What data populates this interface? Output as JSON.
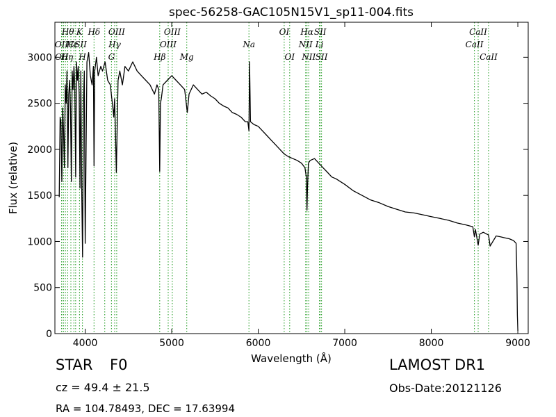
{
  "chart_data": {
    "type": "line",
    "title": "spec-56258-GAC105N15V1_sp11-004.fits",
    "xlabel": "Wavelength (Å)",
    "ylabel": "Flux (relative)",
    "xlim": [
      3650,
      9120
    ],
    "ylim": [
      0,
      3380
    ],
    "x_ticks": [
      4000,
      5000,
      6000,
      7000,
      8000,
      9000
    ],
    "y_ticks": [
      0,
      500,
      1000,
      1500,
      2000,
      2500,
      3000
    ],
    "grid": false,
    "line_color": "#000000",
    "marker_color": "#2ca02c",
    "series": [
      {
        "x": [
          3700,
          3710,
          3720,
          3730,
          3740,
          3750,
          3760,
          3770,
          3780,
          3790,
          3800,
          3810,
          3820,
          3830,
          3840,
          3850,
          3860,
          3870,
          3880,
          3890,
          3900,
          3910,
          3920,
          3930,
          3940,
          3950,
          3960,
          3970,
          3980,
          3990,
          4000,
          4020,
          4040,
          4060,
          4080,
          4095,
          4102,
          4110,
          4130,
          4150,
          4180,
          4200,
          4230,
          4260,
          4290,
          4320,
          4330,
          4340,
          4350,
          4360,
          4380,
          4400,
          4430,
          4460,
          4500,
          4550,
          4600,
          4650,
          4700,
          4750,
          4800,
          4830,
          4850,
          4861,
          4870,
          4880,
          4900,
          4950,
          5000,
          5050,
          5100,
          5150,
          5180,
          5200,
          5250,
          5300,
          5350,
          5400,
          5450,
          5500,
          5550,
          5600,
          5650,
          5700,
          5750,
          5800,
          5850,
          5880,
          5893,
          5900,
          5910,
          5950,
          6000,
          6050,
          6100,
          6150,
          6200,
          6250,
          6300,
          6350,
          6400,
          6450,
          6500,
          6540,
          6555,
          6563,
          6570,
          6580,
          6600,
          6650,
          6700,
          6750,
          6800,
          6850,
          6900,
          6950,
          7000,
          7100,
          7200,
          7300,
          7400,
          7500,
          7600,
          7700,
          7800,
          7900,
          8000,
          8100,
          8200,
          8300,
          8400,
          8480,
          8498,
          8510,
          8542,
          8560,
          8600,
          8662,
          8680,
          8750,
          8800,
          8850,
          8900,
          8950,
          8980,
          8990,
          8995,
          9000
        ],
        "y": [
          1480,
          2350,
          2300,
          1650,
          2450,
          2200,
          1800,
          2700,
          2500,
          2850,
          1800,
          2600,
          2750,
          2450,
          1650,
          2850,
          2650,
          2900,
          2700,
          1700,
          2950,
          2750,
          2900,
          2600,
          1580,
          2850,
          1550,
          830,
          2500,
          2850,
          980,
          2950,
          3050,
          2800,
          2700,
          2900,
          1820,
          2850,
          3000,
          2800,
          2900,
          2850,
          2950,
          2750,
          2700,
          2450,
          2350,
          2550,
          2200,
          1750,
          2750,
          2850,
          2700,
          2900,
          2850,
          2950,
          2850,
          2800,
          2750,
          2700,
          2600,
          2700,
          2650,
          1760,
          2500,
          2550,
          2700,
          2750,
          2800,
          2750,
          2700,
          2650,
          2400,
          2600,
          2700,
          2650,
          2600,
          2620,
          2580,
          2550,
          2500,
          2470,
          2450,
          2400,
          2380,
          2350,
          2300,
          2300,
          2200,
          2950,
          2300,
          2270,
          2250,
          2200,
          2150,
          2100,
          2050,
          2000,
          1950,
          1920,
          1900,
          1880,
          1850,
          1800,
          1700,
          1340,
          1600,
          1850,
          1880,
          1900,
          1850,
          1800,
          1750,
          1700,
          1680,
          1650,
          1620,
          1550,
          1500,
          1450,
          1420,
          1380,
          1350,
          1320,
          1310,
          1290,
          1270,
          1250,
          1230,
          1200,
          1180,
          1160,
          1050,
          1130,
          960,
          1080,
          1100,
          1070,
          950,
          1060,
          1050,
          1040,
          1030,
          1010,
          980,
          600,
          200,
          30
        ]
      }
    ],
    "lines": {
      "x": [
        3727,
        3729,
        3750,
        3771,
        3798,
        3835,
        3869,
        3889,
        3934,
        3968,
        4102,
        4226,
        4304,
        4341,
        4364,
        4861,
        4959,
        5007,
        5174,
        5893,
        6300,
        6363,
        6548,
        6563,
        6583,
        6707,
        6716,
        6731,
        8498,
        8542,
        8662
      ],
      "labels": [
        {
          "text": "Hθ",
          "x": 3800,
          "row": 1
        },
        {
          "text": "K",
          "x": 3934,
          "row": 1
        },
        {
          "text": "Hδ",
          "x": 4102,
          "row": 1
        },
        {
          "text": "OIII",
          "x": 4364,
          "row": 1
        },
        {
          "text": "OIII",
          "x": 5007,
          "row": 1
        },
        {
          "text": "OI",
          "x": 6300,
          "row": 1
        },
        {
          "text": "Hα",
          "x": 6563,
          "row": 1
        },
        {
          "text": "SII",
          "x": 6716,
          "row": 1
        },
        {
          "text": "CaII",
          "x": 8542,
          "row": 1
        },
        {
          "text": "OII",
          "x": 3727,
          "row": 2
        },
        {
          "text": "Hε",
          "x": 3850,
          "row": 2
        },
        {
          "text": "CSII",
          "x": 3910,
          "row": 2
        },
        {
          "text": "Hγ",
          "x": 4341,
          "row": 2
        },
        {
          "text": "OIII",
          "x": 4959,
          "row": 2
        },
        {
          "text": "NII",
          "x": 6548,
          "row": 2
        },
        {
          "text": "Li",
          "x": 6707,
          "row": 2
        },
        {
          "text": "CaII",
          "x": 8498,
          "row": 2
        },
        {
          "text": "OII",
          "x": 3729,
          "row": 3
        },
        {
          "text": "Hη",
          "x": 3790,
          "row": 3
        },
        {
          "text": "H",
          "x": 3968,
          "row": 3
        },
        {
          "text": "G",
          "x": 4304,
          "row": 3
        },
        {
          "text": "Hβ",
          "x": 4861,
          "row": 3
        },
        {
          "text": "Mg",
          "x": 5174,
          "row": 3
        },
        {
          "text": "Na",
          "x": 5893,
          "row": 2
        },
        {
          "text": "OI",
          "x": 6363,
          "row": 3
        },
        {
          "text": "NII",
          "x": 6583,
          "row": 3
        },
        {
          "text": "SII",
          "x": 6731,
          "row": 3
        },
        {
          "text": "CaII",
          "x": 8662,
          "row": 3
        }
      ]
    }
  },
  "info": {
    "object_class": "STAR",
    "subclass": "F0",
    "redshift": "cz = 49.4 ± 21.5",
    "coords": "RA = 104.78493, DEC = 17.63994",
    "survey": "LAMOST DR1",
    "obs_date": "Obs-Date:20121126"
  }
}
